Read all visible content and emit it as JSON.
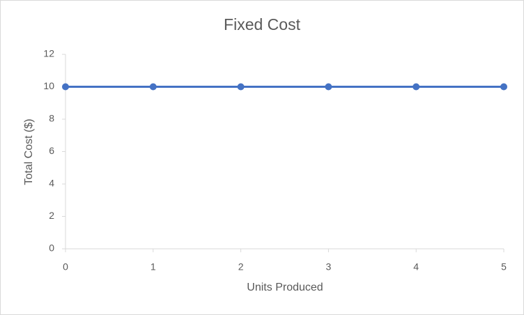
{
  "chart_data": {
    "type": "line",
    "title": "Fixed Cost",
    "x_label": "Units Produced",
    "y_label": "Total Cost ($)",
    "x": [
      0,
      1,
      2,
      3,
      4,
      5
    ],
    "values": [
      10,
      10,
      10,
      10,
      10,
      10
    ],
    "color": "#4472c4",
    "xlim": [
      0,
      5
    ],
    "xticks": [
      0,
      1,
      2,
      3,
      4,
      5
    ],
    "ylim": [
      0,
      12
    ],
    "yticks": [
      0,
      2,
      4,
      6,
      8,
      10,
      12
    ],
    "grid": false
  }
}
